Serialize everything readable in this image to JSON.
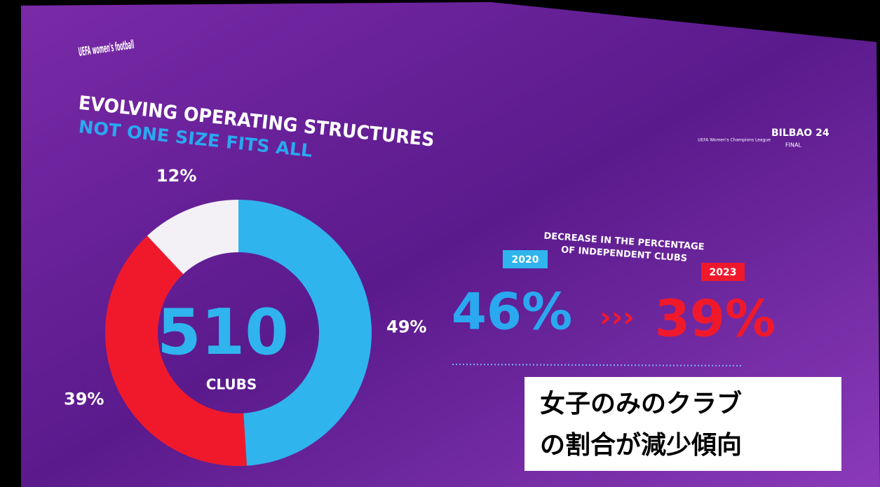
{
  "brand": "UEFA women's football",
  "event": {
    "name": "BILBAO 24",
    "sub": "FINAL",
    "competition": "UEFA Women's Champions League"
  },
  "chart_data": {
    "type": "pie",
    "donut": true,
    "title": "EVOLVING OPERATING STRUCTURES",
    "subtitle": "NOT ONE SIZE FITS ALL",
    "center_value": "510",
    "center_label": "CLUBS",
    "values": [
      49,
      39,
      12
    ],
    "value_labels": [
      "49%",
      "39%",
      "12%"
    ],
    "colors": [
      "#2fb4ee",
      "#f0192c",
      "#f4f1f6"
    ]
  },
  "comparison": {
    "heading": [
      "DECREASE IN THE PERCENTAGE",
      "OF INDEPENDENT CLUBS"
    ],
    "from": {
      "year": "2020",
      "value": "46%"
    },
    "to": {
      "year": "2023",
      "value": "39%"
    }
  },
  "caption": [
    "女子のみのクラブ",
    "の割合が減少傾向"
  ]
}
